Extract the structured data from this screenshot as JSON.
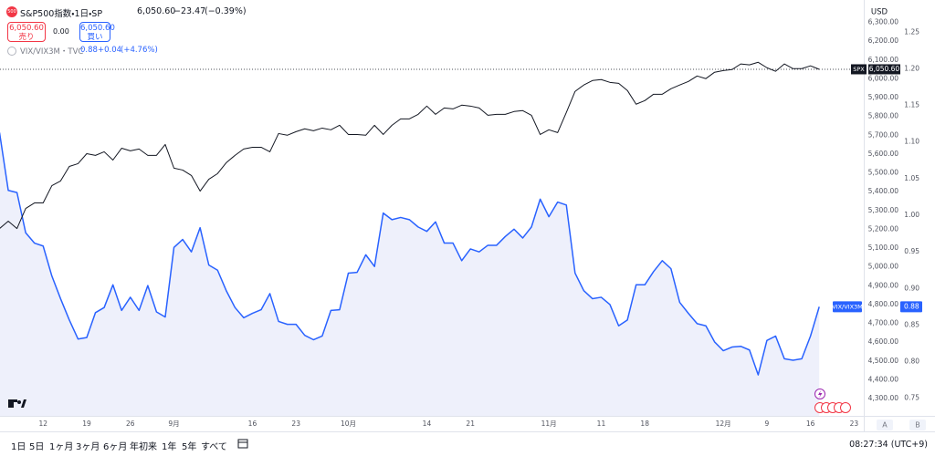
{
  "header": {
    "badge": "500",
    "symbol": "S&P500指数・1日・SP",
    "price": "6,050.60",
    "change": "−23.47",
    "change_pct": "(−0.39%)",
    "sell_price": "6,050.60",
    "sell": "売り",
    "spread": "0.00",
    "buy_price": "6,050.60",
    "buy": "買い"
  },
  "overlay": {
    "symbol": "VIX/VIX3M・TVC",
    "price": "0.88",
    "change": "+0.04",
    "change_pct": "(+4.76%)"
  },
  "axis_controls": {
    "currency": "USD",
    "auto": "A",
    "log": "B"
  },
  "toolbar": {
    "ranges": [
      "1日",
      "5日",
      "1ヶ月",
      "3ヶ月",
      "6ヶ月",
      "年初来",
      "1年",
      "5年",
      "すべて"
    ],
    "time": "08:27:34 (UTC+9)"
  },
  "chart_data": {
    "type": "line",
    "categories": [
      null,
      null,
      null,
      null,
      null,
      "12",
      null,
      null,
      null,
      null,
      "19",
      null,
      null,
      null,
      null,
      "26",
      null,
      null,
      null,
      null,
      "9月",
      null,
      null,
      null,
      null,
      null,
      null,
      null,
      null,
      "16",
      null,
      null,
      null,
      null,
      "23",
      null,
      null,
      null,
      null,
      null,
      "10月",
      null,
      null,
      null,
      null,
      null,
      null,
      null,
      null,
      "14",
      null,
      null,
      null,
      null,
      "21",
      null,
      null,
      null,
      null,
      null,
      null,
      null,
      null,
      "11月",
      null,
      null,
      null,
      null,
      null,
      "11",
      null,
      null,
      null,
      null,
      "18",
      null,
      null,
      null,
      null,
      null,
      null,
      null,
      null,
      "12月",
      null,
      null,
      null,
      null,
      "9",
      null,
      null,
      null,
      null,
      "16",
      null,
      null,
      null,
      null,
      "23"
    ],
    "series": [
      {
        "name": "SPX",
        "color": "#131722",
        "axis": "y",
        "values": [
          5204,
          5243,
          5204,
          5311,
          5340,
          5340,
          5432,
          5457,
          5534,
          5549,
          5602,
          5593,
          5612,
          5568,
          5631,
          5617,
          5627,
          5593,
          5593,
          5651,
          5525,
          5515,
          5486,
          5403,
          5466,
          5496,
          5554,
          5593,
          5627,
          5636,
          5636,
          5612,
          5709,
          5700,
          5719,
          5734,
          5724,
          5738,
          5729,
          5753,
          5704,
          5704,
          5700,
          5753,
          5704,
          5753,
          5787,
          5787,
          5811,
          5855,
          5811,
          5845,
          5840,
          5860,
          5855,
          5845,
          5806,
          5811,
          5811,
          5826,
          5831,
          5806,
          5704,
          5729,
          5714,
          5821,
          5933,
          5967,
          5991,
          5996,
          5981,
          5976,
          5938,
          5865,
          5884,
          5918,
          5918,
          5947,
          5967,
          5986,
          6015,
          6001,
          6035,
          6044,
          6049,
          6079,
          6074,
          6088,
          6059,
          6040,
          6079,
          6054,
          6054,
          6069,
          6050.6,
          null,
          null,
          null,
          null
        ]
      },
      {
        "name": "VIX/VIX3M",
        "color": "#2962ff",
        "fill": "#eef0fb",
        "axis": "y2",
        "values": [
          1.113,
          1.034,
          1.031,
          0.976,
          0.962,
          0.958,
          0.917,
          0.886,
          0.857,
          0.831,
          0.833,
          0.867,
          0.874,
          0.905,
          0.87,
          0.888,
          0.87,
          0.904,
          0.868,
          0.861,
          0.956,
          0.967,
          0.95,
          0.983,
          0.932,
          0.925,
          0.897,
          0.874,
          0.86,
          0.866,
          0.871,
          0.893,
          0.855,
          0.851,
          0.851,
          0.836,
          0.83,
          0.835,
          0.87,
          0.871,
          0.921,
          0.922,
          0.946,
          0.93,
          1.003,
          0.994,
          0.997,
          0.994,
          0.984,
          0.978,
          0.991,
          0.962,
          0.962,
          0.938,
          0.954,
          0.95,
          0.959,
          0.959,
          0.971,
          0.981,
          0.969,
          0.984,
          1.022,
          0.998,
          1.018,
          1.014,
          0.921,
          0.897,
          0.886,
          0.888,
          0.878,
          0.849,
          0.857,
          0.905,
          0.905,
          0.923,
          0.938,
          0.927,
          0.881,
          0.866,
          0.852,
          0.849,
          0.827,
          0.815,
          0.82,
          0.821,
          0.816,
          0.782,
          0.829,
          0.835,
          0.804,
          0.802,
          0.804,
          0.835,
          0.875,
          null,
          null,
          null,
          null
        ]
      }
    ],
    "ylim": [
      4208,
      6419
    ],
    "yticks": [
      {
        "value": 4300,
        "label": "4,300.00"
      },
      {
        "value": 4400,
        "label": "4,400.00"
      },
      {
        "value": 4500,
        "label": "4,500.00"
      },
      {
        "value": 4600,
        "label": "4,600.00"
      },
      {
        "value": 4700,
        "label": "4,700.00"
      },
      {
        "value": 4800,
        "label": "4,800.00"
      },
      {
        "value": 4900,
        "label": "4,900.00"
      },
      {
        "value": 5000,
        "label": "5,000.00"
      },
      {
        "value": 5100,
        "label": "5,100.00"
      },
      {
        "value": 5200,
        "label": "5,200.00"
      },
      {
        "value": 5300,
        "label": "5,300.00"
      },
      {
        "value": 5400,
        "label": "5,400.00"
      },
      {
        "value": 5500,
        "label": "5,500.00"
      },
      {
        "value": 5600,
        "label": "5,600.00"
      },
      {
        "value": 5700,
        "label": "5,700.00"
      },
      {
        "value": 5800,
        "label": "5,800.00"
      },
      {
        "value": 5900,
        "label": "5,900.00"
      },
      {
        "value": 6000,
        "label": "6,000.00"
      },
      {
        "value": 6100,
        "label": "6,100.00"
      },
      {
        "value": 6200,
        "label": "6,200.00"
      },
      {
        "value": 6300,
        "label": "6,300.00"
      }
    ],
    "y2lim": [
      0.726,
      1.294
    ],
    "y2ticks": [
      0.75,
      {
        "value": 0.8,
        "label": "0.80"
      },
      0.85,
      {
        "value": 0.9,
        "label": "0.90"
      },
      0.95,
      {
        "value": 1,
        "label": "1.00"
      },
      1.05,
      {
        "value": 1.1,
        "label": "1.10"
      },
      1.15,
      {
        "value": 1.2,
        "label": "1.20"
      },
      1.25
    ],
    "grid": false
  }
}
